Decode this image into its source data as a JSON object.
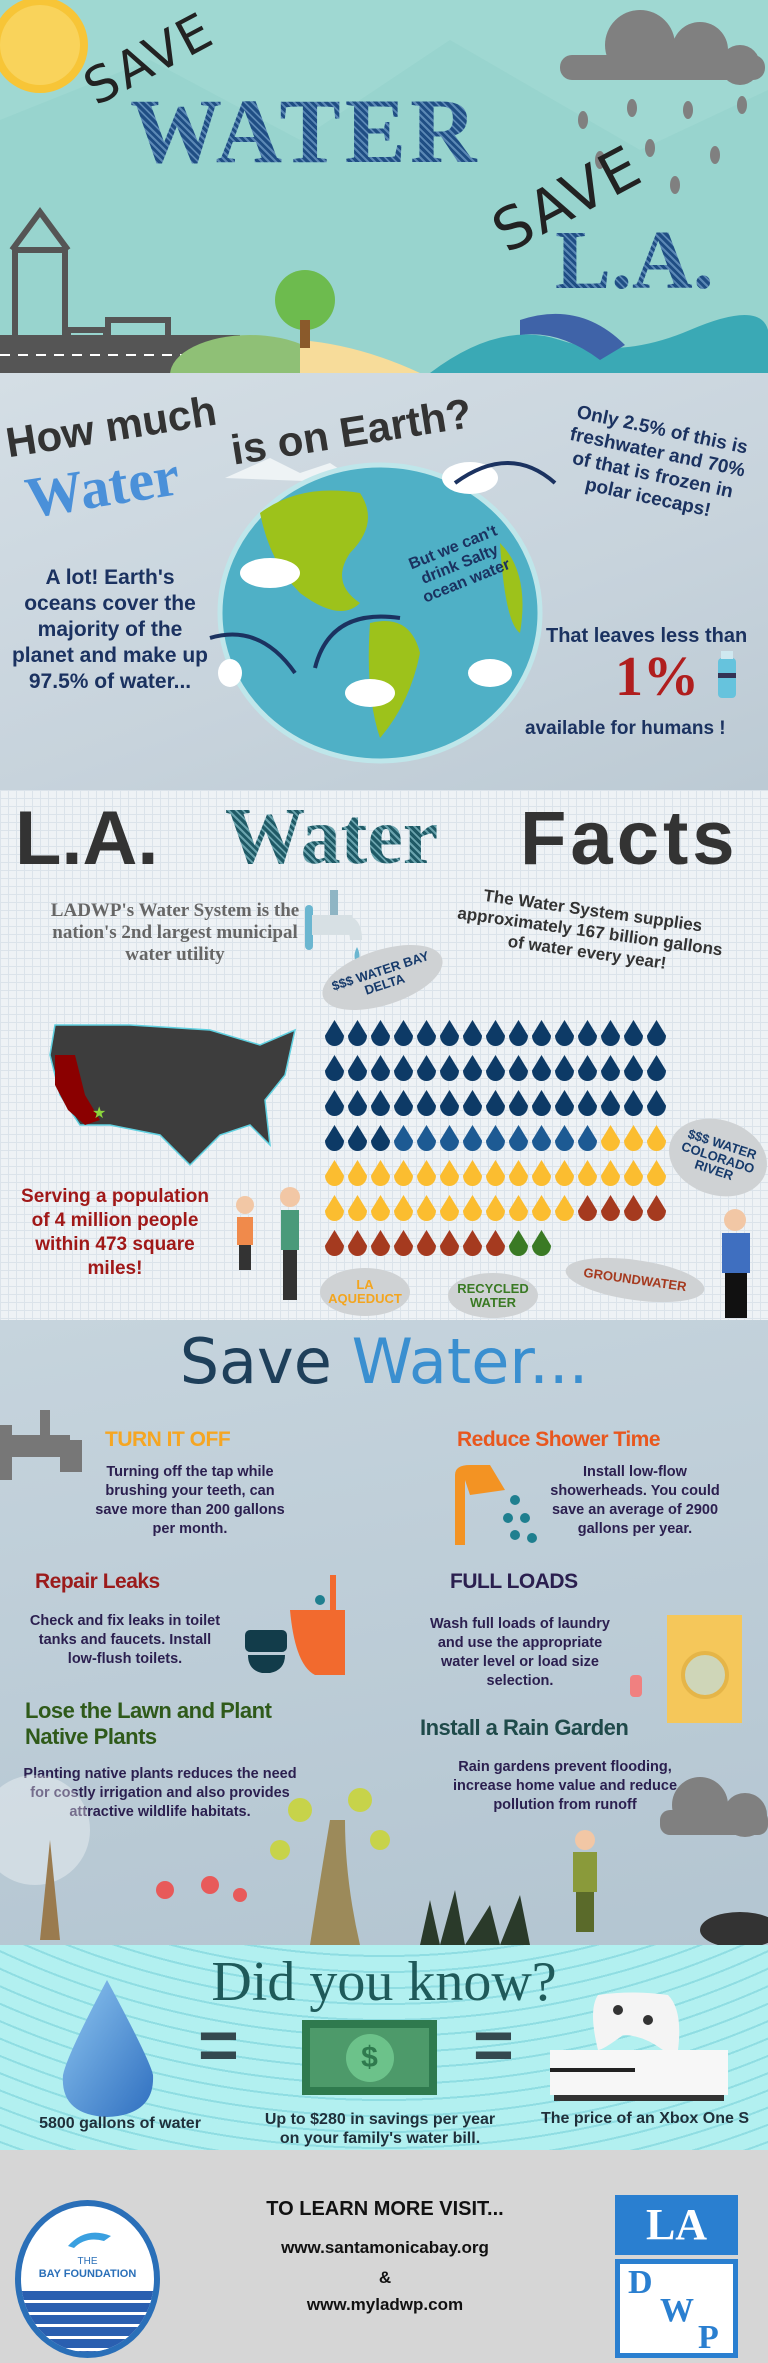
{
  "hero": {
    "save_1": "SAVE",
    "water": "WATER",
    "save_2": "SAVE",
    "la": "L.A."
  },
  "earth": {
    "title_line1": "How much",
    "title_water": "Water",
    "title_rest": "is on Earth?",
    "left_text": "A lot! Earth's oceans cover the majority of the planet and make up 97.5% of water...",
    "globe_text": "But we can't drink Salty ocean water",
    "right_text": "Only 2.5% of this is freshwater and 70% of that is frozen in polar icecaps!",
    "leaves_text": "That leaves less than",
    "percent": "1%",
    "available_text": "available for humans !"
  },
  "facts": {
    "title_la": "L.A.",
    "title_water": "Water",
    "title_facts": "Facts",
    "ladwp_text": "LADWP's Water System is the nation's 2nd largest municipal water utility",
    "supply_text": "The Water System supplies approximately 167 billion gallons of water every year!",
    "population_text": "Serving a population of 4 million people within 473 square miles!",
    "water_sources": [
      {
        "label": "$$$ WATER BAY DELTA",
        "count": 48,
        "color": "#0d3a66"
      },
      {
        "label": "$$$ WATER COLORADO RIVER",
        "count": 9,
        "color": "#1d5a93"
      },
      {
        "label": "LA AQUEDUCT",
        "count": 29,
        "color": "#fbbd30"
      },
      {
        "label": "GROUNDWATER",
        "count": 12,
        "color": "#a53a1f"
      },
      {
        "label": "RECYCLED WATER",
        "count": 2,
        "color": "#3a7a24"
      }
    ],
    "label_colors": {
      "bay_delta": "#163a6b",
      "colorado": "#163a6b",
      "aqueduct": "#f3a51f",
      "recycled": "#3a7a24",
      "groundwater": "#a53a1f"
    }
  },
  "save": {
    "title_save": "Save",
    "title_water": "Water...",
    "tips": [
      {
        "heading": "TURN IT OFF",
        "text": "Turning off the tap while brushing your teeth, can save more than 200 gallons per month.",
        "color": "#f5a623"
      },
      {
        "heading": "Reduce Shower Time",
        "text": "Install low-flow showerheads. You could save an average of 2900 gallons per year.",
        "color": "#e8571e"
      },
      {
        "heading": "Repair Leaks",
        "text": "Check and fix leaks in toilet tanks and faucets. Install low-flush toilets.",
        "color": "#9b1b1b"
      },
      {
        "heading": "FULL LOADS",
        "text": "Wash full loads of laundry and use the appropriate water level or load size selection.",
        "color": "#2b1f4f"
      },
      {
        "heading": "Lose the Lawn and Plant Native Plants",
        "text": "Planting native plants reduces the need for costly irrigation and also provides attractive wildlife habitats.",
        "color": "#2f5a1a"
      },
      {
        "heading": "Install a Rain Garden",
        "text": "Rain gardens prevent flooding, increase home value and reduce pollution from runoff",
        "color": "#1f4a4a"
      }
    ]
  },
  "know": {
    "title": "Did you know?",
    "eq1": "=",
    "eq2": "=",
    "dollar": "$",
    "caption_water": "5800 gallons of water",
    "caption_savings": "Up to $280 in savings per year on your family's water bill.",
    "caption_xbox": "The price of an Xbox One S"
  },
  "footer": {
    "heading": "TO LEARN MORE VISIT...",
    "url1": "www.santamonicabay.org",
    "amp": "&",
    "url2": "www.myladwp.com",
    "bay_logo_the": "THE",
    "bay_logo_name": "BAY FOUNDATION",
    "ladwp_la": "LA",
    "ladwp_d": "D",
    "ladwp_w": "W",
    "ladwp_p": "P"
  }
}
